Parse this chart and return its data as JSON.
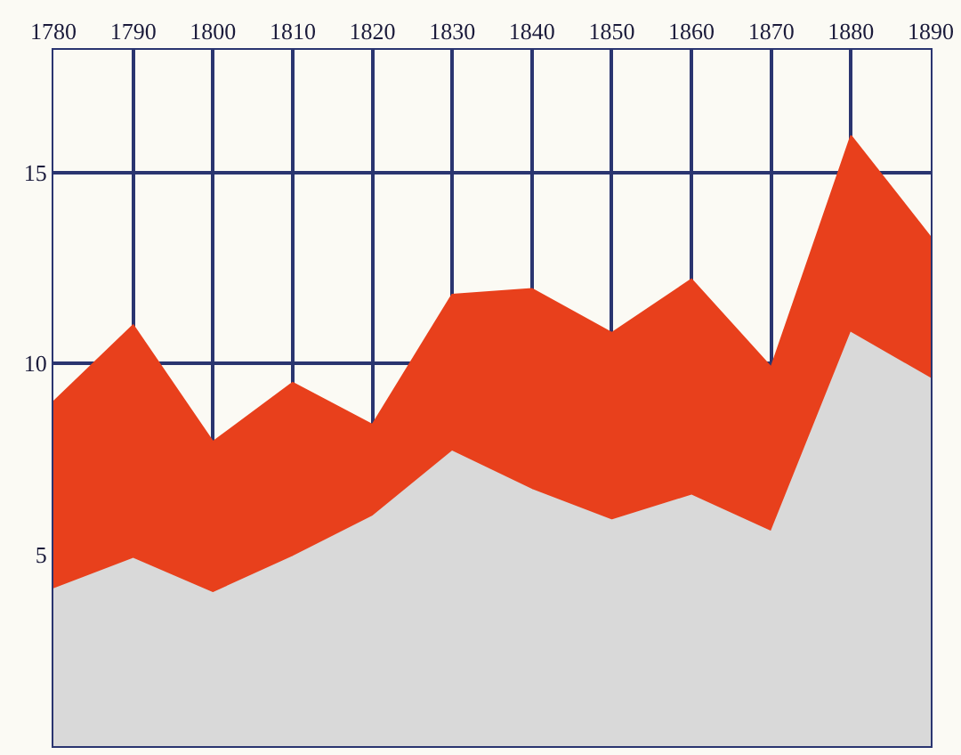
{
  "chart_data": {
    "type": "area",
    "x": [
      1780,
      1790,
      1800,
      1810,
      1820,
      1830,
      1840,
      1850,
      1860,
      1870,
      1880,
      1890
    ],
    "series": [
      {
        "color": "#d9d9d9",
        "values": [
          4.1,
          4.9,
          4.0,
          4.95,
          6.0,
          7.7,
          6.7,
          5.9,
          6.55,
          5.6,
          10.8,
          9.6
        ]
      },
      {
        "color": "#e8401c",
        "values": [
          9.0,
          11.0,
          7.95,
          9.5,
          8.4,
          11.8,
          11.95,
          10.8,
          12.2,
          9.9,
          15.95,
          13.3
        ]
      }
    ],
    "xlim": [
      1780,
      1890
    ],
    "xticks": [
      1780,
      1790,
      1800,
      1810,
      1820,
      1830,
      1840,
      1850,
      1860,
      1870,
      1880,
      1890
    ],
    "ylim": [
      0,
      18.2
    ],
    "yticks": [
      5,
      10,
      15
    ],
    "grid": true
  }
}
